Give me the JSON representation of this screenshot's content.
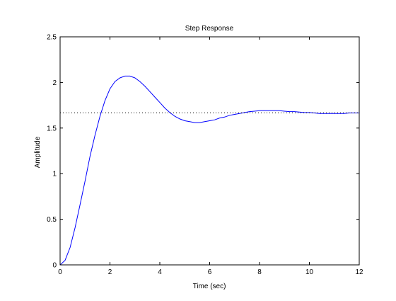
{
  "chart_data": {
    "type": "line",
    "title": "Step Response",
    "xlabel": "Time (sec)",
    "ylabel": "Amplitude",
    "xlim": [
      0,
      12
    ],
    "ylim": [
      0,
      2.5
    ],
    "xticks": [
      0,
      2,
      4,
      6,
      8,
      10,
      12
    ],
    "yticks": [
      0,
      0.5,
      1,
      1.5,
      2,
      2.5
    ],
    "xtick_labels": [
      "0",
      "2",
      "4",
      "6",
      "8",
      "10",
      "12"
    ],
    "ytick_labels": [
      "0",
      "0.5",
      "1",
      "1.5",
      "2",
      "2.5"
    ],
    "grid": false,
    "legend": "none",
    "series": [
      {
        "color": "#0000ff",
        "style": "solid",
        "x": [
          0,
          0.2,
          0.4,
          0.6,
          0.8,
          1.0,
          1.2,
          1.4,
          1.6,
          1.8,
          2.0,
          2.2,
          2.4,
          2.6,
          2.8,
          3.0,
          3.2,
          3.4,
          3.6,
          3.8,
          4.0,
          4.2,
          4.4,
          4.6,
          4.8,
          5.0,
          5.2,
          5.4,
          5.6,
          5.8,
          6.0,
          6.2,
          6.4,
          6.6,
          6.8,
          7.0,
          7.2,
          7.4,
          7.6,
          7.8,
          8.0,
          8.2,
          8.4,
          8.6,
          8.8,
          9.0,
          9.2,
          9.4,
          9.6,
          9.8,
          10.0,
          10.2,
          10.4,
          10.6,
          10.8,
          11.0,
          11.2,
          11.4,
          11.6,
          11.8,
          12.0
        ],
        "y": [
          0,
          0.05,
          0.19,
          0.41,
          0.66,
          0.92,
          1.19,
          1.42,
          1.63,
          1.8,
          1.93,
          2.01,
          2.05,
          2.07,
          2.07,
          2.05,
          2.01,
          1.96,
          1.9,
          1.84,
          1.78,
          1.72,
          1.67,
          1.63,
          1.6,
          1.58,
          1.57,
          1.56,
          1.56,
          1.57,
          1.58,
          1.59,
          1.61,
          1.62,
          1.64,
          1.65,
          1.66,
          1.67,
          1.68,
          1.685,
          1.69,
          1.69,
          1.69,
          1.69,
          1.69,
          1.685,
          1.68,
          1.68,
          1.675,
          1.67,
          1.67,
          1.665,
          1.66,
          1.66,
          1.66,
          1.66,
          1.66,
          1.66,
          1.665,
          1.665,
          1.665
        ]
      },
      {
        "color": "#000000",
        "style": "dotted",
        "x": [
          0,
          12
        ],
        "y": [
          1.667,
          1.667
        ]
      }
    ]
  }
}
